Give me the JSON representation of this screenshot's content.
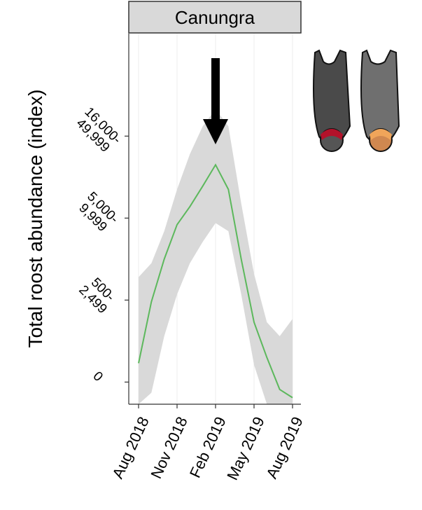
{
  "chart_data": {
    "type": "line",
    "title": "Canungra",
    "y_label": "Total roost abundance (index)",
    "x": [
      "2018-08",
      "2018-09",
      "2018-10",
      "2018-11",
      "2018-12",
      "2019-01",
      "2019-02",
      "2019-03",
      "2019-04",
      "2019-05",
      "2019-06",
      "2019-07",
      "2019-08"
    ],
    "series": [
      {
        "color": "#5cb85c",
        "band_color": "#d9d9d9",
        "values": [
          0.23,
          0.98,
          1.5,
          1.92,
          2.14,
          2.39,
          2.65,
          2.35,
          1.5,
          0.73,
          0.3,
          -0.09,
          -0.19
        ],
        "upper": [
          1.28,
          1.45,
          1.84,
          2.35,
          2.78,
          3.12,
          3.33,
          3.12,
          2.18,
          1.32,
          0.73,
          0.56,
          0.77
        ],
        "lower": [
          -0.27,
          -0.13,
          0.56,
          1.07,
          1.45,
          1.71,
          1.94,
          1.84,
          1.07,
          0.21,
          -0.27,
          -0.27,
          -0.27
        ]
      }
    ],
    "ylim": [
      -0.27,
      4.25
    ],
    "yticks": [
      {
        "value": 0,
        "label": "0"
      },
      {
        "value": 1,
        "label": "500-2,499"
      },
      {
        "value": 2,
        "label": "5,000-9,999"
      },
      {
        "value": 3,
        "label": "16,000-49,999"
      }
    ],
    "xticks": [
      {
        "value": "2018-08",
        "label": "Aug 2018"
      },
      {
        "value": "2018-11",
        "label": "Nov 2018"
      },
      {
        "value": "2019-02",
        "label": "Feb 2019"
      },
      {
        "value": "2019-05",
        "label": "May 2019"
      },
      {
        "value": "2019-08",
        "label": "Aug 2019"
      }
    ],
    "grid": true
  }
}
